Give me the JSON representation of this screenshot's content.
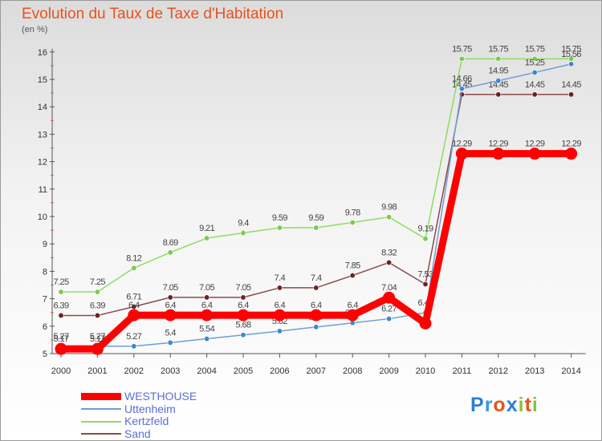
{
  "header": {
    "title": "Evolution du Taux de Taxe d'Habitation",
    "unit": "(en %)"
  },
  "logo": {
    "text": "Proxiti",
    "colors": [
      "#2f7fd1",
      "#3b9ad9",
      "#e8521b",
      "#2f7fd1",
      "#8ac23c",
      "#e8521b",
      "#8ac23c"
    ]
  },
  "chart_data": {
    "type": "line",
    "title": "Evolution du Taux de Taxe d'Habitation",
    "ylabel": "(en %)",
    "xlabel": "",
    "ylim": [
      5,
      16
    ],
    "yticks": [
      5,
      6,
      7,
      8,
      9,
      10,
      11,
      12,
      13,
      14,
      15,
      16
    ],
    "grid": false,
    "legend_position": "bottom-left",
    "x": [
      2000,
      2001,
      2002,
      2003,
      2004,
      2005,
      2006,
      2007,
      2008,
      2009,
      2010,
      2011,
      2012,
      2013,
      2014
    ],
    "series": [
      {
        "name": "WESTHOUSE",
        "color": "#ff0000",
        "marker_color": "#ff0000",
        "emphasis": true,
        "values": [
          5.17,
          5.17,
          6.4,
          6.4,
          6.4,
          6.4,
          6.4,
          6.4,
          6.4,
          7.04,
          6.1,
          12.29,
          12.29,
          12.29,
          12.29
        ],
        "labels": [
          "5.17",
          "5.17",
          "6.4",
          "6.4",
          "6.4",
          "6.4",
          "6.4",
          "6.4",
          "6.4",
          "7.04",
          "",
          "12.29",
          "12.29",
          "12.29",
          "12.29"
        ]
      },
      {
        "name": "Uttenheim",
        "color": "#6e9ed6",
        "marker_color": "#3f86d1",
        "values": [
          5.27,
          5.27,
          5.27,
          5.4,
          5.54,
          5.68,
          5.82,
          5.97,
          6.12,
          6.27,
          6.49,
          14.66,
          14.95,
          15.25,
          15.56
        ],
        "labels": [
          "5.27",
          "5.27",
          "5.27",
          "5.4",
          "5.54",
          "5.68",
          "5.82",
          "5.97",
          "6.12",
          "6.27",
          "6.49",
          "14.66",
          "14.95",
          "15.25",
          "15.56"
        ]
      },
      {
        "name": "Kertzfeld",
        "color": "#8fdc62",
        "marker_color": "#7cc94e",
        "values": [
          7.25,
          7.25,
          8.12,
          8.69,
          9.21,
          9.4,
          9.59,
          9.59,
          9.78,
          9.98,
          9.19,
          15.75,
          15.75,
          15.75,
          15.75
        ],
        "labels": [
          "7.25",
          "7.25",
          "8.12",
          "8.69",
          "9.21",
          "9.4",
          "9.59",
          "9.59",
          "9.78",
          "9.98",
          "9.19",
          "15.75",
          "15.75",
          "15.75",
          "15.75"
        ]
      },
      {
        "name": "Sand",
        "color": "#8b4a4a",
        "marker_color": "#6b2222",
        "values": [
          6.39,
          6.39,
          6.71,
          7.05,
          7.05,
          7.05,
          7.4,
          7.4,
          7.85,
          8.32,
          7.53,
          14.45,
          14.45,
          14.45,
          14.45
        ],
        "labels": [
          "6.39",
          "6.39",
          "6.71",
          "7.05",
          "7.05",
          "7.05",
          "7.4",
          "7.4",
          "7.85",
          "8.32",
          "7.53",
          "14.45",
          "14.45",
          "14.45",
          "14.45"
        ]
      }
    ]
  }
}
